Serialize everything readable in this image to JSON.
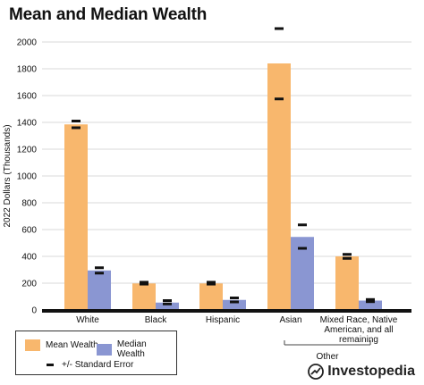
{
  "chart_data": {
    "type": "bar",
    "title": "Mean and Median Wealth",
    "ylabel": "2022 Dollars (Thousands)",
    "ylim": [
      0,
      2000
    ],
    "yticks": [
      0,
      200,
      400,
      600,
      800,
      1000,
      1200,
      1400,
      1600,
      1800,
      2000
    ],
    "categories": [
      "White",
      "Black",
      "Hispanic",
      "Asian",
      "Mixed Race, Native American, and all remaining"
    ],
    "category_lines": [
      [
        "White"
      ],
      [
        "Black"
      ],
      [
        "Hispanic"
      ],
      [
        "Asian"
      ],
      [
        "Mixed Race, Native",
        "American, and all",
        "remaining"
      ]
    ],
    "group_label": "Other",
    "series": [
      {
        "name": "Mean Wealth",
        "color": "#F8B76D",
        "values": [
          1385,
          198,
          198,
          1840,
          400
        ],
        "error": [
          [
            1360,
            1410
          ],
          [
            193,
            207
          ],
          [
            193,
            207
          ],
          [
            1575,
            2100
          ],
          [
            385,
            415
          ]
        ]
      },
      {
        "name": "Median Wealth",
        "color": "#8A96D2",
        "values": [
          295,
          55,
          75,
          545,
          70
        ],
        "error": [
          [
            275,
            315
          ],
          [
            45,
            70
          ],
          [
            60,
            90
          ],
          [
            460,
            635
          ],
          [
            62,
            78
          ]
        ]
      }
    ],
    "legend": {
      "mean": "Mean Wealth",
      "median": "Median Wealth",
      "error": "+/- Standard Error"
    }
  },
  "brand": "Investopedia",
  "colors": {
    "mean": "#F8B76D",
    "median": "#8A96D2",
    "axis": "#111111"
  }
}
